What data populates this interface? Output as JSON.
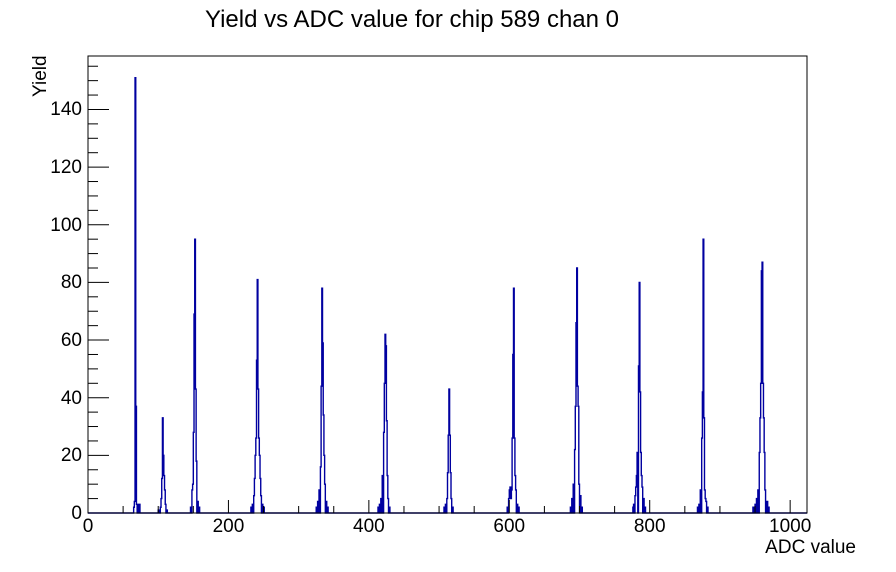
{
  "title": "Yield vs ADC value for chip 589 chan 0",
  "colors": {
    "background": "#ffffff",
    "histogram_line": "#0000a0",
    "axis_line": "#000000",
    "text": "#000000"
  },
  "chart_data": {
    "type": "bar",
    "subtype": "histogram-step-outline",
    "title": "Yield vs ADC value for chip 589 chan 0",
    "xlabel": "ADC value",
    "ylabel": "Yield",
    "xlim": [
      0,
      1024
    ],
    "ylim": [
      0,
      158.55
    ],
    "bin_width": 1,
    "grid": false,
    "legend_position": "none",
    "x_major_ticks": [
      0,
      200,
      400,
      600,
      800,
      1000
    ],
    "x_tick_labels": [
      "0",
      "200",
      "400",
      "600",
      "800",
      "1000"
    ],
    "x_minor_tick_step": 50,
    "y_major_ticks": [
      0,
      20,
      40,
      60,
      80,
      100,
      120,
      140
    ],
    "y_tick_labels": [
      "0",
      "20",
      "40",
      "60",
      "80",
      "100",
      "120",
      "140"
    ],
    "y_minor_tick_step": 5,
    "peaks_summary": [
      {
        "adc": 67,
        "yield": 151
      },
      {
        "adc": 106,
        "yield": 33
      },
      {
        "adc": 152,
        "yield": 95
      },
      {
        "adc": 241,
        "yield": 81
      },
      {
        "adc": 333,
        "yield": 78
      },
      {
        "adc": 423,
        "yield": 62
      },
      {
        "adc": 514,
        "yield": 43
      },
      {
        "adc": 606,
        "yield": 78
      },
      {
        "adc": 696,
        "yield": 85
      },
      {
        "adc": 785,
        "yield": 80
      },
      {
        "adc": 876,
        "yield": 95
      },
      {
        "adc": 960,
        "yield": 87
      }
    ],
    "bins": [
      [
        65,
        2
      ],
      [
        66,
        4
      ],
      [
        67,
        151
      ],
      [
        68,
        37
      ],
      [
        69,
        3
      ],
      [
        72,
        3
      ],
      [
        73,
        3
      ],
      [
        100,
        1
      ],
      [
        103,
        2
      ],
      [
        104,
        5
      ],
      [
        105,
        12
      ],
      [
        106,
        33
      ],
      [
        107,
        20
      ],
      [
        108,
        13
      ],
      [
        109,
        8
      ],
      [
        110,
        3
      ],
      [
        112,
        1
      ],
      [
        146,
        2
      ],
      [
        148,
        8
      ],
      [
        149,
        10
      ],
      [
        150,
        28
      ],
      [
        151,
        69
      ],
      [
        152,
        95
      ],
      [
        153,
        43
      ],
      [
        154,
        18
      ],
      [
        156,
        4
      ],
      [
        158,
        2
      ],
      [
        232,
        2
      ],
      [
        234,
        3
      ],
      [
        236,
        6
      ],
      [
        237,
        12
      ],
      [
        238,
        20
      ],
      [
        239,
        26
      ],
      [
        240,
        53
      ],
      [
        241,
        81
      ],
      [
        242,
        43
      ],
      [
        243,
        26
      ],
      [
        244,
        20
      ],
      [
        245,
        12
      ],
      [
        246,
        6
      ],
      [
        248,
        3
      ],
      [
        250,
        2
      ],
      [
        325,
        2
      ],
      [
        327,
        4
      ],
      [
        329,
        8
      ],
      [
        331,
        16
      ],
      [
        332,
        44
      ],
      [
        333,
        78
      ],
      [
        334,
        59
      ],
      [
        335,
        34
      ],
      [
        336,
        20
      ],
      [
        337,
        10
      ],
      [
        339,
        4
      ],
      [
        341,
        2
      ],
      [
        413,
        2
      ],
      [
        415,
        3
      ],
      [
        417,
        5
      ],
      [
        419,
        13
      ],
      [
        421,
        28
      ],
      [
        422,
        45
      ],
      [
        423,
        62
      ],
      [
        424,
        58
      ],
      [
        425,
        32
      ],
      [
        426,
        13
      ],
      [
        427,
        5
      ],
      [
        429,
        2
      ],
      [
        507,
        2
      ],
      [
        509,
        3
      ],
      [
        511,
        5
      ],
      [
        512,
        14
      ],
      [
        513,
        27
      ],
      [
        514,
        43
      ],
      [
        515,
        27
      ],
      [
        516,
        14
      ],
      [
        517,
        5
      ],
      [
        519,
        2
      ],
      [
        597,
        2
      ],
      [
        599,
        5
      ],
      [
        600,
        8
      ],
      [
        601,
        9
      ],
      [
        602,
        5
      ],
      [
        603,
        8
      ],
      [
        604,
        26
      ],
      [
        605,
        55
      ],
      [
        606,
        78
      ],
      [
        607,
        26
      ],
      [
        608,
        13
      ],
      [
        609,
        8
      ],
      [
        611,
        3
      ],
      [
        613,
        2
      ],
      [
        687,
        2
      ],
      [
        689,
        5
      ],
      [
        691,
        10
      ],
      [
        693,
        22
      ],
      [
        694,
        37
      ],
      [
        695,
        66
      ],
      [
        696,
        85
      ],
      [
        697,
        44
      ],
      [
        698,
        37
      ],
      [
        699,
        10
      ],
      [
        701,
        6
      ],
      [
        703,
        2
      ],
      [
        776,
        2
      ],
      [
        777,
        3
      ],
      [
        779,
        6
      ],
      [
        780,
        9
      ],
      [
        781,
        13
      ],
      [
        782,
        21
      ],
      [
        784,
        51
      ],
      [
        785,
        80
      ],
      [
        786,
        42
      ],
      [
        787,
        21
      ],
      [
        788,
        13
      ],
      [
        789,
        9
      ],
      [
        791,
        5
      ],
      [
        793,
        2
      ],
      [
        868,
        2
      ],
      [
        870,
        3
      ],
      [
        872,
        8
      ],
      [
        874,
        26
      ],
      [
        875,
        42
      ],
      [
        876,
        95
      ],
      [
        877,
        33
      ],
      [
        878,
        8
      ],
      [
        879,
        5
      ],
      [
        880,
        4
      ],
      [
        882,
        2
      ],
      [
        947,
        2
      ],
      [
        950,
        3
      ],
      [
        952,
        5
      ],
      [
        954,
        8
      ],
      [
        956,
        21
      ],
      [
        957,
        33
      ],
      [
        958,
        45
      ],
      [
        959,
        84
      ],
      [
        960,
        87
      ],
      [
        961,
        45
      ],
      [
        962,
        33
      ],
      [
        963,
        21
      ],
      [
        964,
        8
      ],
      [
        966,
        4
      ],
      [
        967,
        4
      ],
      [
        969,
        2
      ]
    ]
  }
}
